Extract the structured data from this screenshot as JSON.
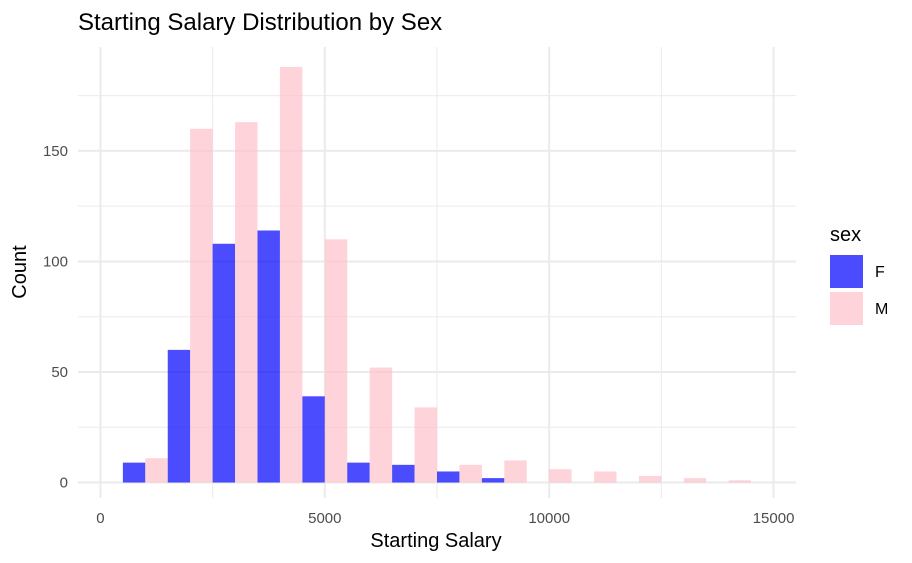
{
  "chart_data": {
    "type": "bar",
    "title": "Starting Salary Distribution by Sex",
    "xlabel": "Starting Salary",
    "ylabel": "Count",
    "xlim": [
      -500,
      15500
    ],
    "ylim": [
      -7,
      197
    ],
    "xticks": [
      0,
      5000,
      10000,
      15000
    ],
    "xtick_labels": [
      "0",
      "5000",
      "10000",
      "15000"
    ],
    "yticks": [
      0,
      50,
      100,
      150
    ],
    "ytick_labels": [
      "0",
      "50",
      "100",
      "150"
    ],
    "grid": true,
    "legend": {
      "title": "sex",
      "position": "right"
    },
    "bins": [
      1000,
      2000,
      3000,
      4000,
      5000,
      6000,
      7000,
      8000,
      9000,
      10000,
      11000,
      12000,
      13000,
      14000
    ],
    "bin_width": 1000,
    "series": [
      {
        "name": "F",
        "color": "#0000ff",
        "opacity": 0.7,
        "values": [
          9,
          60,
          108,
          114,
          39,
          9,
          8,
          5,
          2,
          0,
          0,
          0,
          0,
          0
        ]
      },
      {
        "name": "M",
        "color": "#ffc0cb",
        "opacity": 0.7,
        "values": [
          11,
          160,
          163,
          188,
          110,
          52,
          34,
          8,
          10,
          6,
          5,
          3,
          2,
          1
        ]
      }
    ]
  }
}
